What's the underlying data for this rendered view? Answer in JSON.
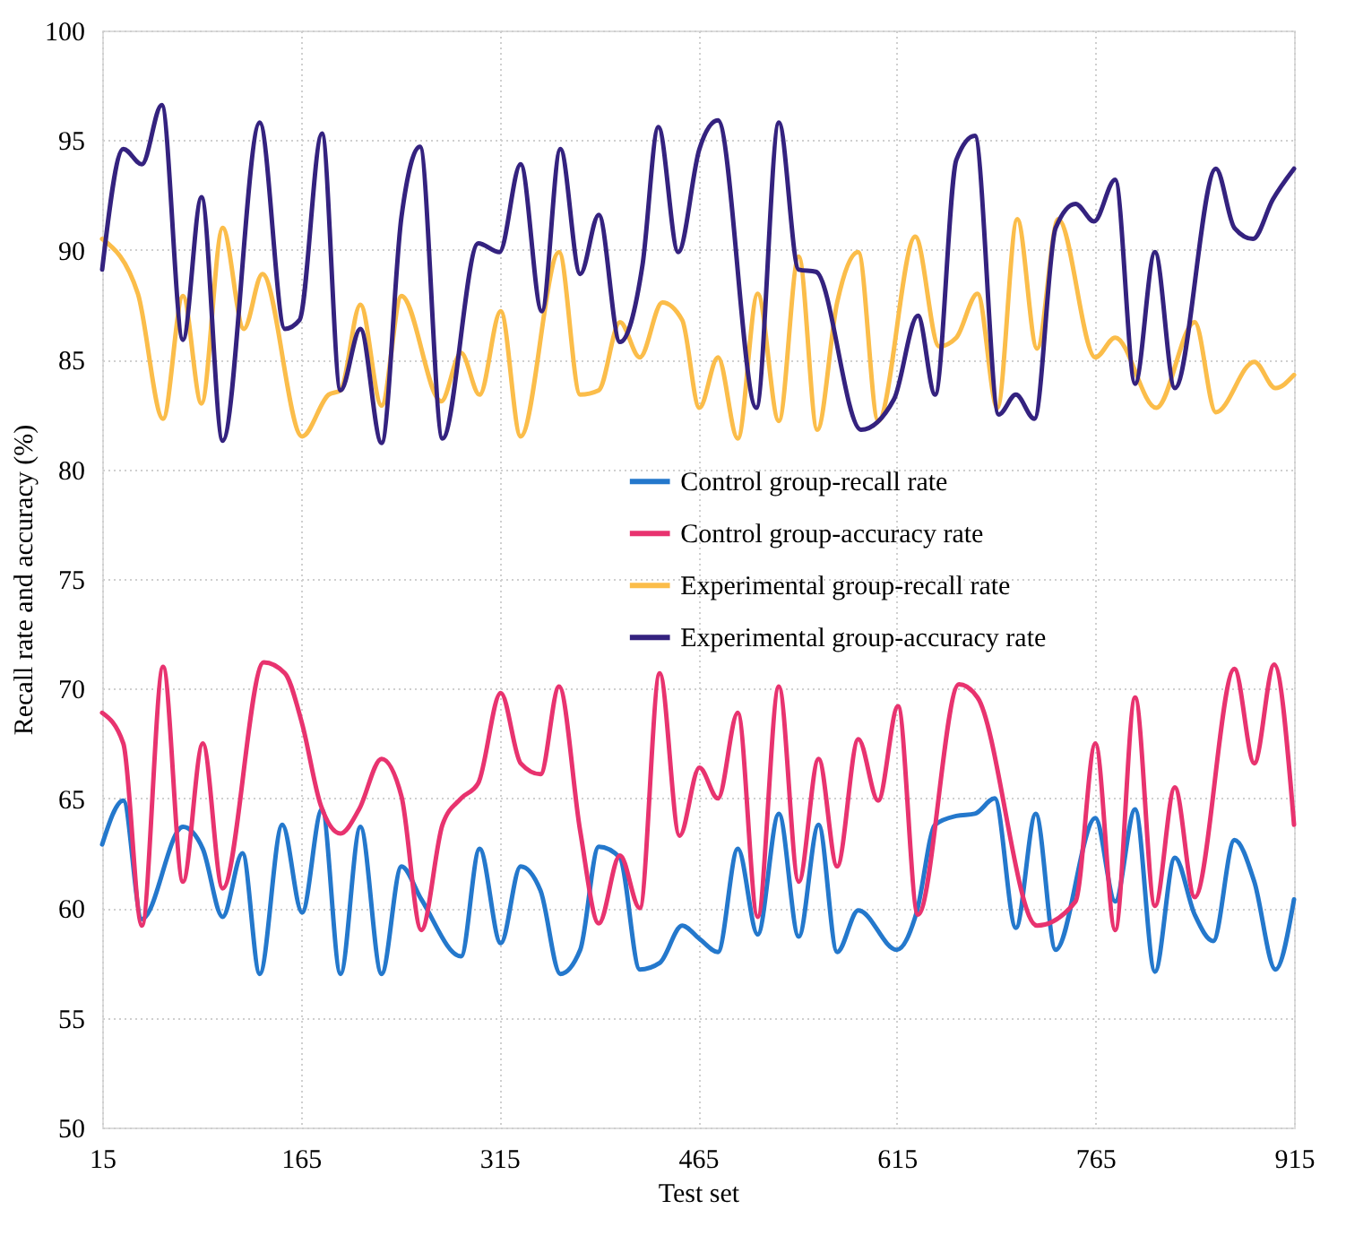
{
  "chart_data": {
    "type": "line",
    "xlabel": "Test set",
    "ylabel": "Recall rate and accuracy (%)",
    "xlim": [
      15,
      915
    ],
    "xticks": [
      15,
      165,
      315,
      465,
      615,
      765,
      915
    ],
    "ylim": [
      50,
      100
    ],
    "yticks": [
      50,
      55,
      60,
      65,
      70,
      75,
      80,
      85,
      90,
      95,
      100
    ],
    "grid": true,
    "legend": "right",
    "line_style": "solid",
    "marker": "none",
    "series": [
      {
        "name": "Control group-recall rate",
        "color": "#2478cc",
        "x": [
          15,
          31,
          45,
          76,
          91,
          106,
          121,
          134,
          151,
          166,
          181,
          195,
          210,
          226,
          241,
          256,
          286,
          300,
          316,
          331,
          346,
          361,
          376,
          390,
          406,
          421,
          436,
          453,
          466,
          480,
          495,
          510,
          526,
          541,
          556,
          570,
          586,
          615,
          630,
          644,
          660,
          674,
          689,
          705,
          720,
          735,
          765,
          780,
          795,
          810,
          825,
          840,
          854,
          870,
          885,
          901,
          915
        ],
        "values": [
          62.9,
          64.9,
          59.5,
          63.7,
          62.7,
          59.6,
          62.5,
          57.0,
          63.8,
          59.8,
          64.5,
          57.0,
          63.7,
          57.0,
          61.9,
          60.4,
          57.8,
          62.7,
          58.4,
          61.9,
          60.8,
          57.0,
          58.1,
          62.8,
          62.3,
          57.2,
          57.5,
          59.2,
          58.6,
          58.0,
          62.7,
          58.8,
          64.3,
          58.7,
          63.8,
          58.0,
          59.9,
          58.1,
          59.8,
          63.8,
          64.2,
          64.3,
          65.0,
          59.1,
          64.3,
          58.1,
          64.1,
          60.3,
          64.5,
          57.1,
          62.3,
          59.7,
          58.5,
          63.1,
          61.2,
          57.2,
          60.4
        ]
      },
      {
        "name": "Control group-accuracy rate",
        "color": "#e8336f",
        "x": [
          15,
          31,
          45,
          61,
          76,
          91,
          106,
          137,
          153,
          166,
          180,
          195,
          209,
          226,
          241,
          256,
          272,
          286,
          299,
          316,
          331,
          346,
          360,
          376,
          390,
          406,
          421,
          436,
          451,
          466,
          480,
          495,
          510,
          526,
          541,
          556,
          570,
          586,
          601,
          616,
          631,
          662,
          676,
          721,
          750,
          765,
          780,
          795,
          810,
          825,
          840,
          870,
          885,
          900,
          915
        ],
        "values": [
          68.9,
          67.5,
          59.2,
          71.0,
          61.2,
          67.5,
          60.9,
          71.2,
          70.7,
          68.4,
          64.7,
          63.4,
          64.5,
          66.8,
          65.1,
          59.0,
          63.8,
          65.0,
          65.7,
          69.8,
          66.6,
          66.1,
          70.1,
          63.5,
          59.3,
          62.4,
          60.0,
          70.7,
          63.3,
          66.4,
          65.0,
          68.9,
          59.6,
          70.1,
          61.2,
          66.8,
          61.9,
          67.7,
          64.9,
          69.2,
          59.7,
          70.2,
          69.6,
          59.2,
          60.3,
          67.5,
          59.0,
          69.6,
          60.1,
          65.5,
          60.5,
          70.9,
          66.6,
          71.1,
          63.8
        ]
      },
      {
        "name": "Experimental group-recall rate",
        "color": "#fbbd4a",
        "x": [
          15,
          42,
          61,
          76,
          90,
          106,
          122,
          136,
          166,
          186,
          195,
          210,
          226,
          241,
          271,
          286,
          300,
          316,
          331,
          360,
          376,
          390,
          406,
          421,
          438,
          453,
          466,
          480,
          495,
          510,
          526,
          541,
          555,
          570,
          586,
          601,
          629,
          647,
          660,
          676,
          691,
          706,
          721,
          737,
          765,
          780,
          811,
          840,
          856,
          885,
          901,
          915
        ],
        "values": [
          90.5,
          88.0,
          82.3,
          87.9,
          83.0,
          91.0,
          86.4,
          88.9,
          81.5,
          83.4,
          83.6,
          87.5,
          82.9,
          87.9,
          83.1,
          85.3,
          83.4,
          87.2,
          81.5,
          89.9,
          83.4,
          83.6,
          86.7,
          85.1,
          87.6,
          86.8,
          82.8,
          85.1,
          81.4,
          88.0,
          82.2,
          89.7,
          81.8,
          87.6,
          89.9,
          82.2,
          90.6,
          85.6,
          86.0,
          88.0,
          82.8,
          91.4,
          85.5,
          91.4,
          85.1,
          86.0,
          82.8,
          86.7,
          82.6,
          84.9,
          83.7,
          84.3
        ]
      },
      {
        "name": "Experimental group-accuracy rate",
        "color": "#34227f",
        "x": [
          15,
          31,
          45,
          60,
          76,
          90,
          106,
          134,
          153,
          164,
          181,
          195,
          210,
          226,
          241,
          255,
          272,
          299,
          315,
          331,
          347,
          361,
          376,
          390,
          406,
          423,
          435,
          450,
          466,
          480,
          509,
          526,
          541,
          554,
          588,
          613,
          631,
          644,
          660,
          674,
          692,
          705,
          719,
          735,
          750,
          764,
          780,
          795,
          810,
          825,
          856,
          870,
          884,
          899,
          915
        ],
        "values": [
          89.1,
          94.6,
          93.9,
          96.6,
          85.9,
          92.4,
          81.3,
          95.8,
          86.4,
          86.8,
          95.3,
          83.6,
          86.4,
          81.2,
          91.5,
          94.7,
          81.4,
          90.3,
          89.9,
          93.9,
          87.2,
          94.6,
          88.9,
          91.6,
          85.8,
          89.3,
          95.6,
          89.9,
          94.6,
          95.9,
          82.8,
          95.8,
          89.1,
          89.0,
          81.8,
          83.2,
          87.0,
          83.4,
          94.1,
          95.2,
          82.5,
          83.4,
          82.3,
          91.0,
          92.1,
          91.3,
          93.2,
          83.9,
          89.9,
          83.7,
          93.7,
          91.0,
          90.5,
          92.3,
          93.7
        ]
      }
    ]
  }
}
